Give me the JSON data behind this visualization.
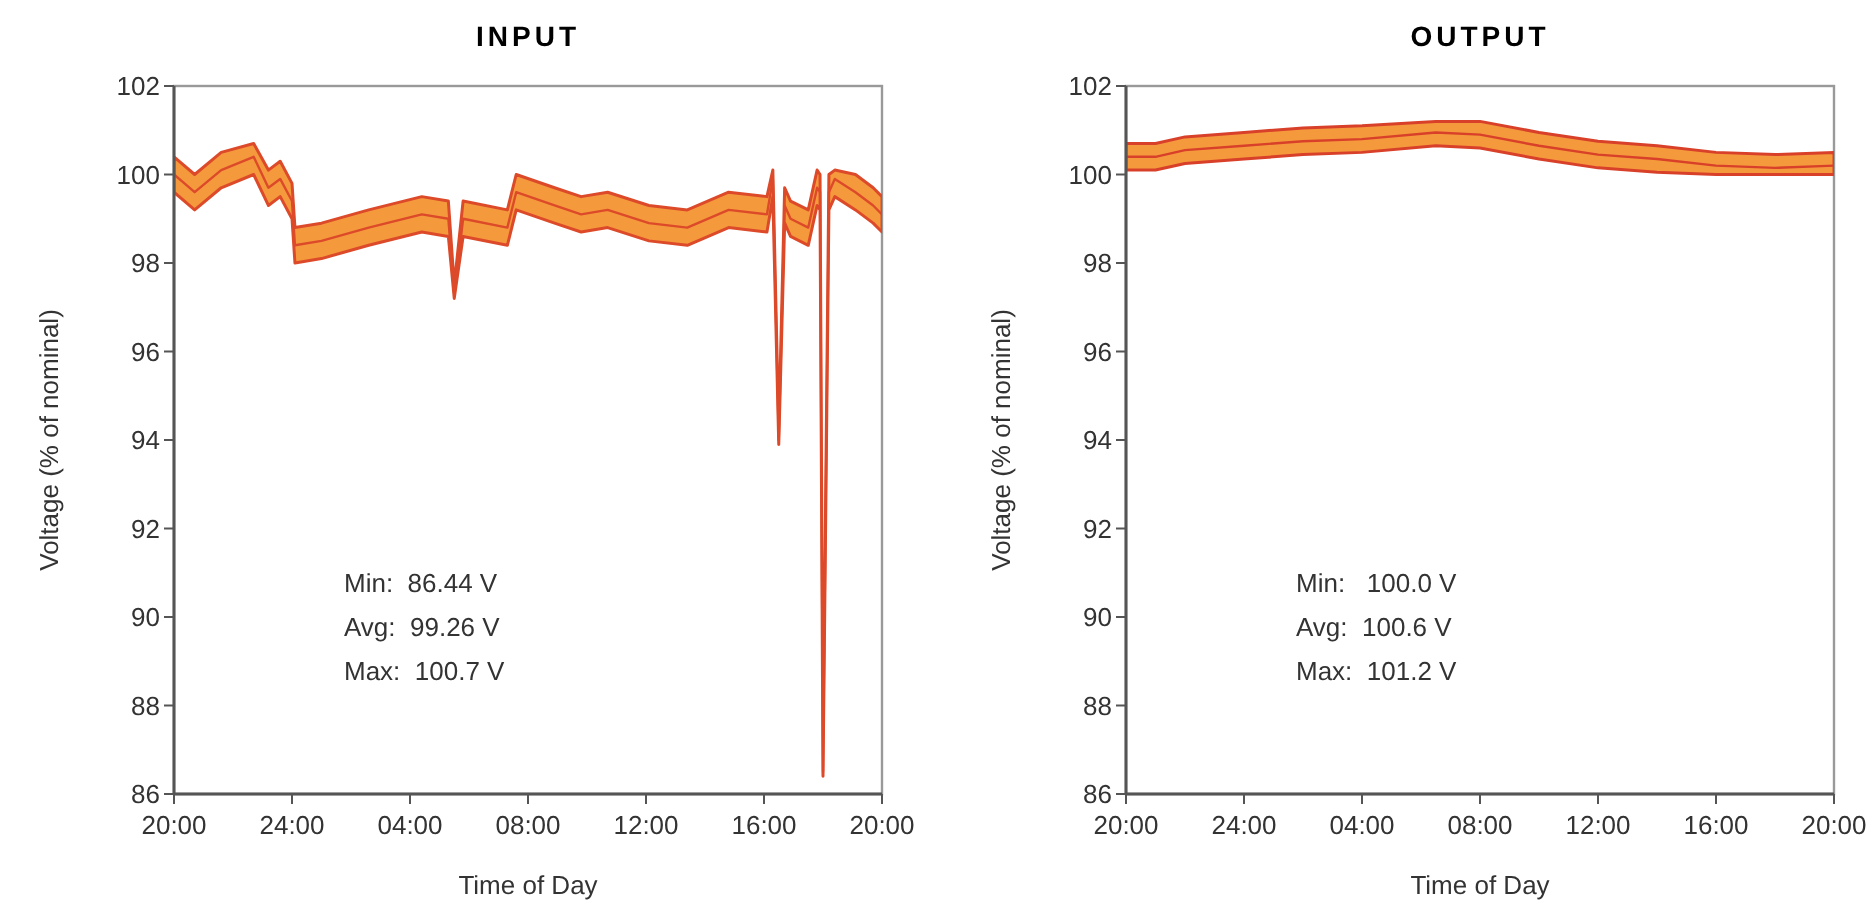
{
  "chart_data": [
    {
      "type": "line",
      "title": "INPUT",
      "xlabel": "Time of Day",
      "ylabel": "Voltage (% of nominal)",
      "annotations": [
        "Min:  86.44 V",
        "Avg:  99.26 V",
        "Max:  100.7 V"
      ],
      "xlim": [
        "2000-01-01T20:00",
        "2000-01-02T20:00"
      ],
      "xticks": [
        {
          "value": "2000-01-01T20:00",
          "label": "20:00"
        },
        {
          "value": "2000-01-02T00:00",
          "label": "24:00"
        },
        {
          "value": "2000-01-02T04:00",
          "label": "04:00"
        },
        {
          "value": "2000-01-02T08:00",
          "label": "08:00"
        },
        {
          "value": "2000-01-02T12:00",
          "label": "12:00"
        },
        {
          "value": "2000-01-02T16:00",
          "label": "16:00"
        },
        {
          "value": "2000-01-02T20:00",
          "label": "20:00"
        }
      ],
      "ylim": [
        86,
        102
      ],
      "yticks": [
        86,
        88,
        90,
        92,
        94,
        96,
        98,
        100,
        102
      ],
      "series": [
        {
          "color": "#dc4a2a",
          "x": [
            "2000-01-01T20:00",
            "2000-01-01T20:42",
            "2000-01-01T21:36",
            "2000-01-01T22:42",
            "2000-01-01T23:12",
            "2000-01-01T23:36",
            "2000-01-02T00:00",
            "2000-01-02T00:06",
            "2000-01-02T01:00",
            "2000-01-02T02:36",
            "2000-01-02T04:24",
            "2000-01-02T05:18",
            "2000-01-02T05:30",
            "2000-01-02T05:48",
            "2000-01-02T07:18",
            "2000-01-02T07:36",
            "2000-01-02T08:54",
            "2000-01-02T09:48",
            "2000-01-02T10:42",
            "2000-01-02T12:06",
            "2000-01-02T13:24",
            "2000-01-02T14:48",
            "2000-01-02T16:06",
            "2000-01-02T16:18",
            "2000-01-02T16:30",
            "2000-01-02T16:42",
            "2000-01-02T16:54",
            "2000-01-02T17:30",
            "2000-01-02T17:48",
            "2000-01-02T17:54",
            "2000-01-02T18:00",
            "2000-01-02T18:12",
            "2000-01-02T18:24",
            "2000-01-02T19:06",
            "2000-01-02T19:42",
            "2000-01-02T20:00"
          ],
          "values": [
            100,
            99.6,
            100.1,
            100.4,
            99.7,
            99.9,
            99.4,
            98.4,
            98.5,
            98.8,
            99.1,
            99,
            97.3,
            99,
            98.8,
            99.6,
            99.3,
            99.1,
            99.2,
            98.9,
            98.8,
            99.2,
            99.1,
            99.9,
            94,
            99.3,
            99,
            98.8,
            99.7,
            99.6,
            86.5,
            99.6,
            99.9,
            99.6,
            99.3,
            99.1
          ],
          "lower": [
            99.6,
            99.2,
            99.7,
            100,
            99.3,
            99.5,
            99,
            98,
            98.1,
            98.4,
            98.7,
            98.6,
            97.2,
            98.6,
            98.4,
            99.2,
            98.9,
            98.7,
            98.8,
            98.5,
            98.4,
            98.8,
            98.7,
            99.5,
            93.9,
            98.9,
            98.6,
            98.4,
            99.3,
            99.2,
            86.4,
            99.2,
            99.5,
            99.2,
            98.9,
            98.7
          ],
          "upper": [
            100.4,
            100,
            100.5,
            100.7,
            100.1,
            100.3,
            99.8,
            98.8,
            98.9,
            99.2,
            99.5,
            99.4,
            97.5,
            99.4,
            99.2,
            100,
            99.7,
            99.5,
            99.6,
            99.3,
            99.2,
            99.6,
            99.5,
            100.1,
            94.2,
            99.7,
            99.4,
            99.2,
            100.1,
            100,
            86.7,
            100,
            100.1,
            100,
            99.7,
            99.5
          ]
        }
      ]
    },
    {
      "type": "line",
      "title": "OUTPUT",
      "xlabel": "Time of Day",
      "ylabel": "Voltage (% of nominal)",
      "annotations": [
        "Min:   100.0 V",
        "Avg:  100.6 V",
        "Max:  101.2 V"
      ],
      "xlim": [
        "2000-01-01T20:00",
        "2000-01-02T20:00"
      ],
      "xticks": [
        {
          "value": "2000-01-01T20:00",
          "label": "20:00"
        },
        {
          "value": "2000-01-02T00:00",
          "label": "24:00"
        },
        {
          "value": "2000-01-02T04:00",
          "label": "04:00"
        },
        {
          "value": "2000-01-02T08:00",
          "label": "08:00"
        },
        {
          "value": "2000-01-02T12:00",
          "label": "12:00"
        },
        {
          "value": "2000-01-02T16:00",
          "label": "16:00"
        },
        {
          "value": "2000-01-02T20:00",
          "label": "20:00"
        }
      ],
      "ylim": [
        86,
        102
      ],
      "yticks": [
        86,
        88,
        90,
        92,
        94,
        96,
        98,
        100,
        102
      ],
      "series": [
        {
          "color": "#d8402a",
          "x": [
            "2000-01-01T20:00",
            "2000-01-01T21:00",
            "2000-01-01T22:00",
            "2000-01-02T00:00",
            "2000-01-02T02:00",
            "2000-01-02T04:00",
            "2000-01-02T06:30",
            "2000-01-02T08:00",
            "2000-01-02T10:00",
            "2000-01-02T12:00",
            "2000-01-02T14:00",
            "2000-01-02T16:00",
            "2000-01-02T18:00",
            "2000-01-02T20:00"
          ],
          "values": [
            100.4,
            100.4,
            100.55,
            100.65,
            100.75,
            100.8,
            100.95,
            100.9,
            100.65,
            100.45,
            100.35,
            100.2,
            100.15,
            100.2
          ],
          "lower": [
            100.1,
            100.1,
            100.25,
            100.35,
            100.45,
            100.5,
            100.65,
            100.6,
            100.35,
            100.15,
            100.05,
            100,
            100,
            100
          ],
          "upper": [
            100.7,
            100.7,
            100.85,
            100.95,
            101.05,
            101.1,
            101.2,
            101.2,
            100.95,
            100.75,
            100.65,
            100.5,
            100.45,
            100.5
          ]
        }
      ]
    }
  ]
}
